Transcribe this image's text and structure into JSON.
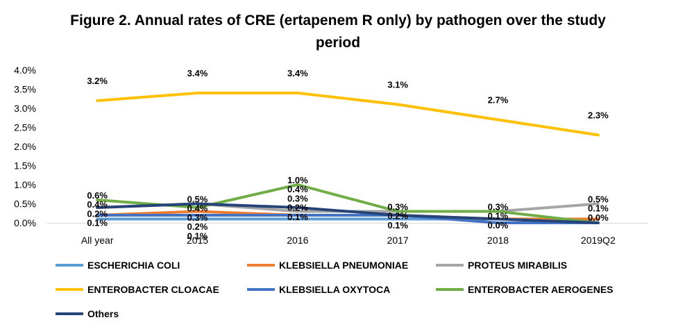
{
  "chart_data": {
    "type": "line",
    "title": "Figure 2. Annual rates of CRE (ertapenem R only) by pathogen over the study period",
    "xlabel": "",
    "ylabel": "",
    "categories": [
      "All year",
      "2015",
      "2016",
      "2017",
      "2018",
      "2019Q2"
    ],
    "ylim": [
      0,
      4.0
    ],
    "y_ticks": [
      "0.0%",
      "0.5%",
      "1.0%",
      "1.5%",
      "2.0%",
      "2.5%",
      "3.0%",
      "3.5%",
      "4.0%"
    ],
    "grid": false,
    "legend_position": "bottom",
    "series": [
      {
        "name": "ESCHERICHIA COLI",
        "color": "#5B9BD5",
        "values": [
          0.1,
          0.1,
          0.1,
          0.1,
          0.1,
          0.0
        ]
      },
      {
        "name": "KLEBSIELLA PNEUMONIAE",
        "color": "#ED7D31",
        "values": [
          0.2,
          0.3,
          0.2,
          0.2,
          0.1,
          0.1
        ]
      },
      {
        "name": "PROTEUS MIRABILIS",
        "color": "#A5A5A5",
        "values": [
          0.4,
          0.5,
          0.3,
          0.3,
          0.3,
          0.5
        ]
      },
      {
        "name": "ENTEROBACTER CLOACAE",
        "color": "#FFC000",
        "values": [
          3.2,
          3.4,
          3.4,
          3.1,
          2.7,
          2.3
        ]
      },
      {
        "name": "KLEBSIELLA OXYTOCA",
        "color": "#4472C4",
        "values": [
          0.2,
          0.2,
          0.2,
          0.2,
          0.0,
          0.0
        ]
      },
      {
        "name": "ENTEROBACTER AEROGENES",
        "color": "#70AD47",
        "values": [
          0.6,
          0.4,
          1.0,
          0.3,
          0.3,
          0.0
        ]
      },
      {
        "name": "Others",
        "color": "#264478",
        "values": [
          0.4,
          0.5,
          0.4,
          0.2,
          0.1,
          0.0
        ]
      }
    ],
    "data_labels": [
      [
        "3.2%",
        "0.6%",
        "0.4%",
        "0.2%",
        "0.1%"
      ],
      [
        "3.4%",
        "0.5%",
        "0.4%",
        "0.3%",
        "0.2%",
        "0.1%"
      ],
      [
        "3.4%",
        "1.0%",
        "0.4%",
        "0.3%",
        "0.2%",
        "0.1%"
      ],
      [
        "3.1%",
        "0.3%",
        "0.2%",
        "0.1%"
      ],
      [
        "2.7%",
        "0.3%",
        "0.1%",
        "0.0%"
      ],
      [
        "2.3%",
        "0.5%",
        "0.1%",
        "0.0%"
      ]
    ]
  }
}
